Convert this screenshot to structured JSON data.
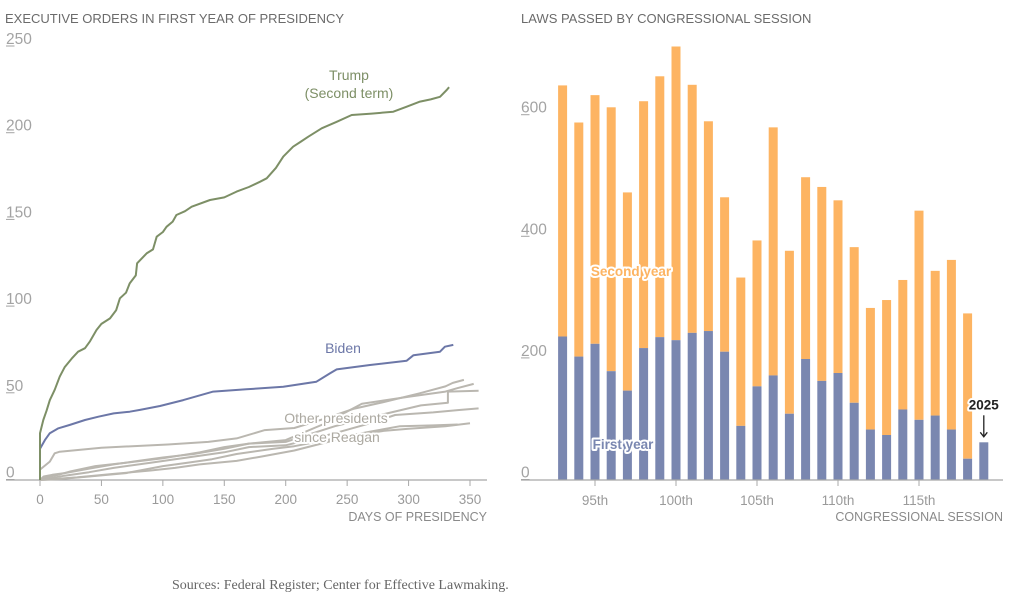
{
  "source": "Sources: Federal Register; Center for Effective Lawmaking.",
  "chart_data": [
    {
      "type": "line",
      "title": "EXECUTIVE ORDERS IN FIRST YEAR OF PRESIDENCY",
      "xlabel": "DAYS OF PRESIDENCY",
      "ylabel": "",
      "xlim": [
        0,
        360
      ],
      "ylim": [
        0,
        250
      ],
      "xticks": [
        0,
        50,
        100,
        150,
        200,
        250,
        300,
        350
      ],
      "yticks": [
        0,
        50,
        100,
        150,
        200,
        250
      ],
      "grid": false,
      "legend": "none (direct labels)",
      "labels": {
        "trump_line1": "Trump",
        "trump_line2": "(Second term)",
        "biden": "Biden",
        "others_line1": "Other presidents",
        "others_line2": "since Reagan"
      },
      "series": [
        {
          "name": "Trump (Second term)",
          "color": "#7d8f66",
          "points": [
            [
              0,
              0
            ],
            [
              0,
              27
            ],
            [
              2.7,
              34.6
            ],
            [
              5.4,
              40
            ],
            [
              8,
              46
            ],
            [
              12,
              52
            ],
            [
              16,
              59.6
            ],
            [
              20,
              65
            ],
            [
              25.8,
              70
            ],
            [
              31,
              74
            ],
            [
              36.6,
              76
            ],
            [
              40.7,
              80
            ],
            [
              46,
              86.5
            ],
            [
              50,
              90
            ],
            [
              57,
              93.2
            ],
            [
              62,
              98
            ],
            [
              65,
              104.8
            ],
            [
              70,
              108
            ],
            [
              73,
              113.4
            ],
            [
              78,
              118
            ],
            [
              79,
              125
            ],
            [
              86.8,
              130.7
            ],
            [
              92,
              133
            ],
            [
              95,
              140.3
            ],
            [
              100,
              143
            ],
            [
              103,
              146
            ],
            [
              108,
              149
            ],
            [
              111,
              152.8
            ],
            [
              118,
              155
            ],
            [
              123.5,
              157.6
            ],
            [
              138.4,
              161.5
            ],
            [
              150,
              163
            ],
            [
              160,
              166.3
            ],
            [
              170,
              169
            ],
            [
              179,
              172
            ],
            [
              184.5,
              174
            ],
            [
              192,
              180
            ],
            [
              198,
              186.5
            ],
            [
              206,
              192.2
            ],
            [
              212,
              195
            ],
            [
              218.4,
              198
            ],
            [
              229.3,
              202.8
            ],
            [
              241.5,
              206.6
            ],
            [
              253.7,
              210.5
            ],
            [
              270,
              211.3
            ],
            [
              287.6,
              212.4
            ],
            [
              298.5,
              215.3
            ],
            [
              309.3,
              218.2
            ],
            [
              318,
              219.5
            ],
            [
              325.6,
              221
            ],
            [
              331,
              224.9
            ],
            [
              333,
              226.5
            ]
          ]
        },
        {
          "name": "Biden",
          "color": "#6c77a7",
          "points": [
            [
              0,
              0
            ],
            [
              0,
              18
            ],
            [
              4,
              23
            ],
            [
              8,
              27
            ],
            [
              15,
              29.8
            ],
            [
              24,
              31.7
            ],
            [
              36.6,
              34.6
            ],
            [
              47.5,
              36.5
            ],
            [
              60,
              38.4
            ],
            [
              73,
              39.4
            ],
            [
              81.4,
              40.4
            ],
            [
              97.7,
              42.7
            ],
            [
              116.6,
              46.1
            ],
            [
              141,
              51
            ],
            [
              168,
              52.3
            ],
            [
              198,
              53.8
            ],
            [
              225,
              56.7
            ],
            [
              236,
              61.5
            ],
            [
              241.5,
              63.8
            ],
            [
              268.6,
              66.3
            ],
            [
              298.5,
              68.8
            ],
            [
              304,
              72
            ],
            [
              325.6,
              74
            ],
            [
              329.6,
              76.9
            ],
            [
              336.4,
              77.9
            ]
          ]
        },
        {
          "name": "Other presidents since Reagan",
          "color": "#bab7b0",
          "lines": [
            [
              [
                0,
                0
              ],
              [
                0,
                6
              ],
              [
                8,
                10.6
              ],
              [
                12,
                15.4
              ],
              [
                16,
                16.3
              ],
              [
                50,
                18.6
              ],
              [
                104,
                20.5
              ],
              [
                137,
                22
              ],
              [
                160,
                24
              ],
              [
                183,
                28.8
              ],
              [
                207,
                30
              ],
              [
                230,
                35
              ],
              [
                255,
                41
              ],
              [
                280,
                45
              ],
              [
                309,
                50
              ],
              [
                330,
                54
              ],
              [
                336,
                56
              ],
              [
                345,
                57.7
              ]
            ],
            [
              [
                0,
                0
              ],
              [
                5,
                1.5
              ],
              [
                15,
                3
              ],
              [
                25,
                5
              ],
              [
                45,
                8
              ],
              [
                70,
                10
              ],
              [
                100,
                12.5
              ],
              [
                130,
                16
              ],
              [
                150,
                19
              ],
              [
                170,
                21
              ],
              [
                200,
                23
              ],
              [
                230,
                32
              ],
              [
                262,
                44
              ],
              [
                300,
                48
              ],
              [
                330,
                51
              ],
              [
                340,
                53
              ],
              [
                353,
                55.4
              ]
            ],
            [
              [
                0,
                0
              ],
              [
                3,
                2
              ],
              [
                10,
                3
              ],
              [
                20,
                4
              ],
              [
                40,
                6.5
              ],
              [
                60,
                9
              ],
              [
                80,
                11
              ],
              [
                100,
                13
              ],
              [
                125,
                15
              ],
              [
                150,
                18
              ],
              [
                170,
                21
              ],
              [
                200,
                22
              ],
              [
                240,
                31
              ],
              [
                280,
                38
              ],
              [
                310,
                43
              ],
              [
                332,
                44.5
              ],
              [
                332,
                51
              ],
              [
                357,
                51.5
              ]
            ],
            [
              [
                0,
                0
              ],
              [
                8,
                1
              ],
              [
                20,
                2.5
              ],
              [
                40,
                4.5
              ],
              [
                60,
                7
              ],
              [
                90,
                10
              ],
              [
                120,
                13
              ],
              [
                150,
                16
              ],
              [
                170,
                19
              ],
              [
                200,
                20
              ],
              [
                240,
                27
              ],
              [
                270,
                33
              ],
              [
                289,
                37.5
              ],
              [
                320,
                39
              ],
              [
                340,
                40.3
              ],
              [
                357,
                41.3
              ]
            ],
            [
              [
                0,
                0
              ],
              [
                10,
                0.5
              ],
              [
                30,
                1.5
              ],
              [
                60,
                3.5
              ],
              [
                90,
                5.5
              ],
              [
                110,
                7
              ],
              [
                130,
                9
              ],
              [
                160,
                11
              ],
              [
                180,
                13.5
              ],
              [
                207,
                17
              ],
              [
                240,
                23
              ],
              [
                260,
                26
              ],
              [
                279.5,
                28.3
              ],
              [
                300,
                29.5
              ],
              [
                330,
                31
              ],
              [
                350,
                32.7
              ]
            ],
            [
              [
                0,
                0
              ],
              [
                15,
                0.5
              ],
              [
                40,
                2
              ],
              [
                70,
                4
              ],
              [
                100,
                8
              ],
              [
                120,
                10
              ],
              [
                140,
                12
              ],
              [
                160,
                15
              ],
              [
                190,
                18
              ],
              [
                207,
                19.5
              ],
              [
                240,
                24
              ],
              [
                270,
                28
              ],
              [
                293,
                31
              ],
              [
                320,
                31.5
              ],
              [
                340,
                32
              ]
            ]
          ]
        }
      ]
    },
    {
      "type": "bar",
      "stacked": true,
      "title": "LAWS PASSED BY CONGRESSIONAL SESSION",
      "xlabel": "CONGRESSIONAL SESSION",
      "ylabel": "",
      "ylim": [
        0,
        720
      ],
      "yticks": [
        0,
        200,
        400,
        600
      ],
      "grid": false,
      "legend": "none (direct labels)",
      "categories": [
        "93rd",
        "94th",
        "95th",
        "96th",
        "97th",
        "98th",
        "99th",
        "100th",
        "101st",
        "102nd",
        "103rd",
        "104th",
        "105th",
        "106th",
        "107th",
        "108th",
        "109th",
        "110th",
        "111th",
        "112th",
        "113th",
        "114th",
        "115th",
        "116th",
        "117th",
        "118th",
        "119th"
      ],
      "xtick_labels": [
        "95th",
        "100th",
        "105th",
        "110th",
        "115th"
      ],
      "series": [
        {
          "name": "First year",
          "color": "#7a87b0",
          "values": [
            236,
            203,
            224,
            179,
            147,
            217,
            235,
            230,
            242,
            245,
            211,
            89,
            154,
            172,
            109,
            199,
            163,
            176,
            127,
            83,
            74,
            116,
            99,
            106,
            83,
            35,
            62
          ]
        },
        {
          "name": "Second year",
          "color": "#fdb462",
          "values": [
            413,
            385,
            409,
            434,
            326,
            406,
            429,
            483,
            408,
            345,
            254,
            244,
            240,
            408,
            268,
            299,
            319,
            284,
            256,
            200,
            222,
            213,
            344,
            238,
            279,
            239,
            0
          ]
        }
      ],
      "totals": [
        649,
        588,
        633,
        613,
        473,
        623,
        664,
        713,
        650,
        590,
        465,
        333,
        394,
        580,
        377,
        498,
        482,
        460,
        383,
        283,
        296,
        329,
        443,
        344,
        362,
        274,
        62
      ],
      "labels": {
        "second_year": "Second year",
        "first_year": "First year"
      },
      "annotations": [
        {
          "category": "119th",
          "text": "2025"
        }
      ]
    }
  ]
}
